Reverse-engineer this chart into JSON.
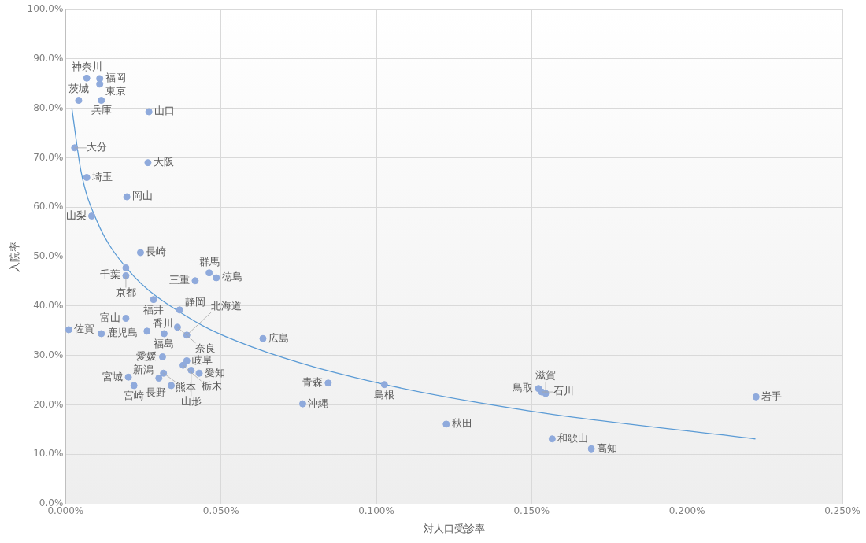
{
  "chart_data": {
    "type": "scatter",
    "xlabel": "対人口受診率",
    "ylabel": "入院率",
    "marker": "circle",
    "grid": true,
    "legend": false,
    "xlim": [
      0,
      0.25
    ],
    "ylim": [
      0,
      100
    ],
    "xticks": [
      {
        "value": 0,
        "label": "0.000%"
      },
      {
        "value": 0.05,
        "label": "0.050%"
      },
      {
        "value": 0.1,
        "label": "0.100%"
      },
      {
        "value": 0.15,
        "label": "0.150%"
      },
      {
        "value": 0.2,
        "label": "0.200%"
      },
      {
        "value": 0.25,
        "label": "0.250%"
      }
    ],
    "yticks": [
      {
        "value": 0,
        "label": "0.0%"
      },
      {
        "value": 10,
        "label": "10.0%"
      },
      {
        "value": 20,
        "label": "20.0%"
      },
      {
        "value": 30,
        "label": "30.0%"
      },
      {
        "value": 40,
        "label": "40.0%"
      },
      {
        "value": 50,
        "label": "50.0%"
      },
      {
        "value": 60,
        "label": "60.0%"
      },
      {
        "value": 70,
        "label": "70.0%"
      },
      {
        "value": 80,
        "label": "80.0%"
      },
      {
        "value": 90,
        "label": "90.0%"
      },
      {
        "value": 100,
        "label": "100.0%"
      }
    ],
    "series": [
      {
        "color": "#8faadc",
        "x": [
          0.0068,
          0.011,
          0.011,
          0.0115,
          0.0042,
          0.0268,
          0.0029,
          0.0265,
          0.0068,
          0.0197,
          0.0084,
          0.0241,
          0.0194,
          0.0194,
          0.0417,
          0.0462,
          0.0485,
          0.0283,
          0.0367,
          0.0194,
          0.001,
          0.0115,
          0.0262,
          0.0317,
          0.036,
          0.039,
          0.039,
          0.0312,
          0.0202,
          0.022,
          0.03,
          0.0315,
          0.034,
          0.0378,
          0.043,
          0.0404,
          0.0635,
          0.0763,
          0.0845,
          0.1026,
          0.1225,
          0.1522,
          0.1532,
          0.1545,
          0.1566,
          0.1692,
          0.2222
        ],
        "values": [
          86.1,
          86.0,
          84.9,
          81.6,
          81.6,
          79.3,
          72.0,
          69.0,
          66.0,
          62.1,
          58.2,
          50.8,
          47.7,
          46.1,
          45.1,
          46.7,
          45.7,
          41.3,
          39.2,
          37.5,
          35.2,
          34.4,
          34.9,
          34.4,
          35.7,
          34.1,
          28.9,
          29.7,
          25.6,
          23.9,
          25.4,
          26.4,
          23.9,
          28.0,
          26.4,
          27.0,
          33.4,
          20.2,
          24.4,
          24.1,
          16.1,
          23.3,
          22.6,
          22.3,
          13.1,
          11.1,
          21.6
        ]
      },
      {
        "type": "line",
        "marker": "none",
        "color": "#5b9bd5",
        "x": [
          0.002,
          0.005,
          0.01,
          0.02,
          0.04,
          0.06,
          0.1,
          0.15,
          0.222
        ],
        "values": [
          80.0,
          67.1,
          57.3,
          47.4,
          37.5,
          31.7,
          24.5,
          18.7,
          13.1
        ]
      }
    ],
    "annotations": [
      {
        "text": "神奈川",
        "x": 0.0068,
        "y": 86.1
      },
      {
        "text": "福岡",
        "x": 0.011,
        "y": 86.0
      },
      {
        "text": "東京",
        "x": 0.011,
        "y": 84.9
      },
      {
        "text": "兵庫",
        "x": 0.0115,
        "y": 81.6
      },
      {
        "text": "茨城",
        "x": 0.0042,
        "y": 81.6
      },
      {
        "text": "山口",
        "x": 0.0268,
        "y": 79.3
      },
      {
        "text": "大分",
        "x": 0.0029,
        "y": 72.0
      },
      {
        "text": "大阪",
        "x": 0.0265,
        "y": 69.0
      },
      {
        "text": "埼玉",
        "x": 0.0068,
        "y": 66.0
      },
      {
        "text": "岡山",
        "x": 0.0197,
        "y": 62.1
      },
      {
        "text": "山梨",
        "x": 0.0084,
        "y": 58.2
      },
      {
        "text": "長崎",
        "x": 0.0241,
        "y": 50.8
      },
      {
        "text": "千葉",
        "x": 0.0194,
        "y": 47.7
      },
      {
        "text": "京都",
        "x": 0.0194,
        "y": 46.1
      },
      {
        "text": "三重",
        "x": 0.0417,
        "y": 45.1
      },
      {
        "text": "群馬",
        "x": 0.0462,
        "y": 46.7
      },
      {
        "text": "徳島",
        "x": 0.0485,
        "y": 45.7
      },
      {
        "text": "福井",
        "x": 0.0283,
        "y": 41.3
      },
      {
        "text": "静岡",
        "x": 0.0367,
        "y": 39.2
      },
      {
        "text": "富山",
        "x": 0.0194,
        "y": 37.5
      },
      {
        "text": "佐賀",
        "x": 0.001,
        "y": 35.2
      },
      {
        "text": "鹿児島",
        "x": 0.0115,
        "y": 34.4
      },
      {
        "text": "香川",
        "x": 0.0262,
        "y": 34.9
      },
      {
        "text": "福島",
        "x": 0.0317,
        "y": 34.4
      },
      {
        "text": "奈良",
        "x": 0.036,
        "y": 35.7
      },
      {
        "text": "北海道",
        "x": 0.039,
        "y": 34.1
      },
      {
        "text": "岐阜",
        "x": 0.039,
        "y": 28.9
      },
      {
        "text": "愛媛",
        "x": 0.0312,
        "y": 29.7
      },
      {
        "text": "宮城",
        "x": 0.0202,
        "y": 25.6
      },
      {
        "text": "宮崎",
        "x": 0.022,
        "y": 23.9
      },
      {
        "text": "新潟",
        "x": 0.03,
        "y": 25.4
      },
      {
        "text": "熊本",
        "x": 0.0315,
        "y": 26.4
      },
      {
        "text": "長野",
        "x": 0.034,
        "y": 23.9
      },
      {
        "text": "栃木",
        "x": 0.0378,
        "y": 28.0
      },
      {
        "text": "愛知",
        "x": 0.043,
        "y": 26.4
      },
      {
        "text": "山形",
        "x": 0.0404,
        "y": 27.0
      },
      {
        "text": "広島",
        "x": 0.0635,
        "y": 33.4
      },
      {
        "text": "沖縄",
        "x": 0.0763,
        "y": 20.2
      },
      {
        "text": "青森",
        "x": 0.0845,
        "y": 24.4
      },
      {
        "text": "島根",
        "x": 0.1026,
        "y": 24.1
      },
      {
        "text": "秋田",
        "x": 0.1225,
        "y": 16.1
      },
      {
        "text": "鳥取",
        "x": 0.1522,
        "y": 23.3
      },
      {
        "text": "石川",
        "x": 0.1532,
        "y": 22.6
      },
      {
        "text": "滋賀",
        "x": 0.1545,
        "y": 22.3
      },
      {
        "text": "和歌山",
        "x": 0.1566,
        "y": 13.1
      },
      {
        "text": "高知",
        "x": 0.1692,
        "y": 11.1
      },
      {
        "text": "岩手",
        "x": 0.2222,
        "y": 21.6
      }
    ]
  }
}
